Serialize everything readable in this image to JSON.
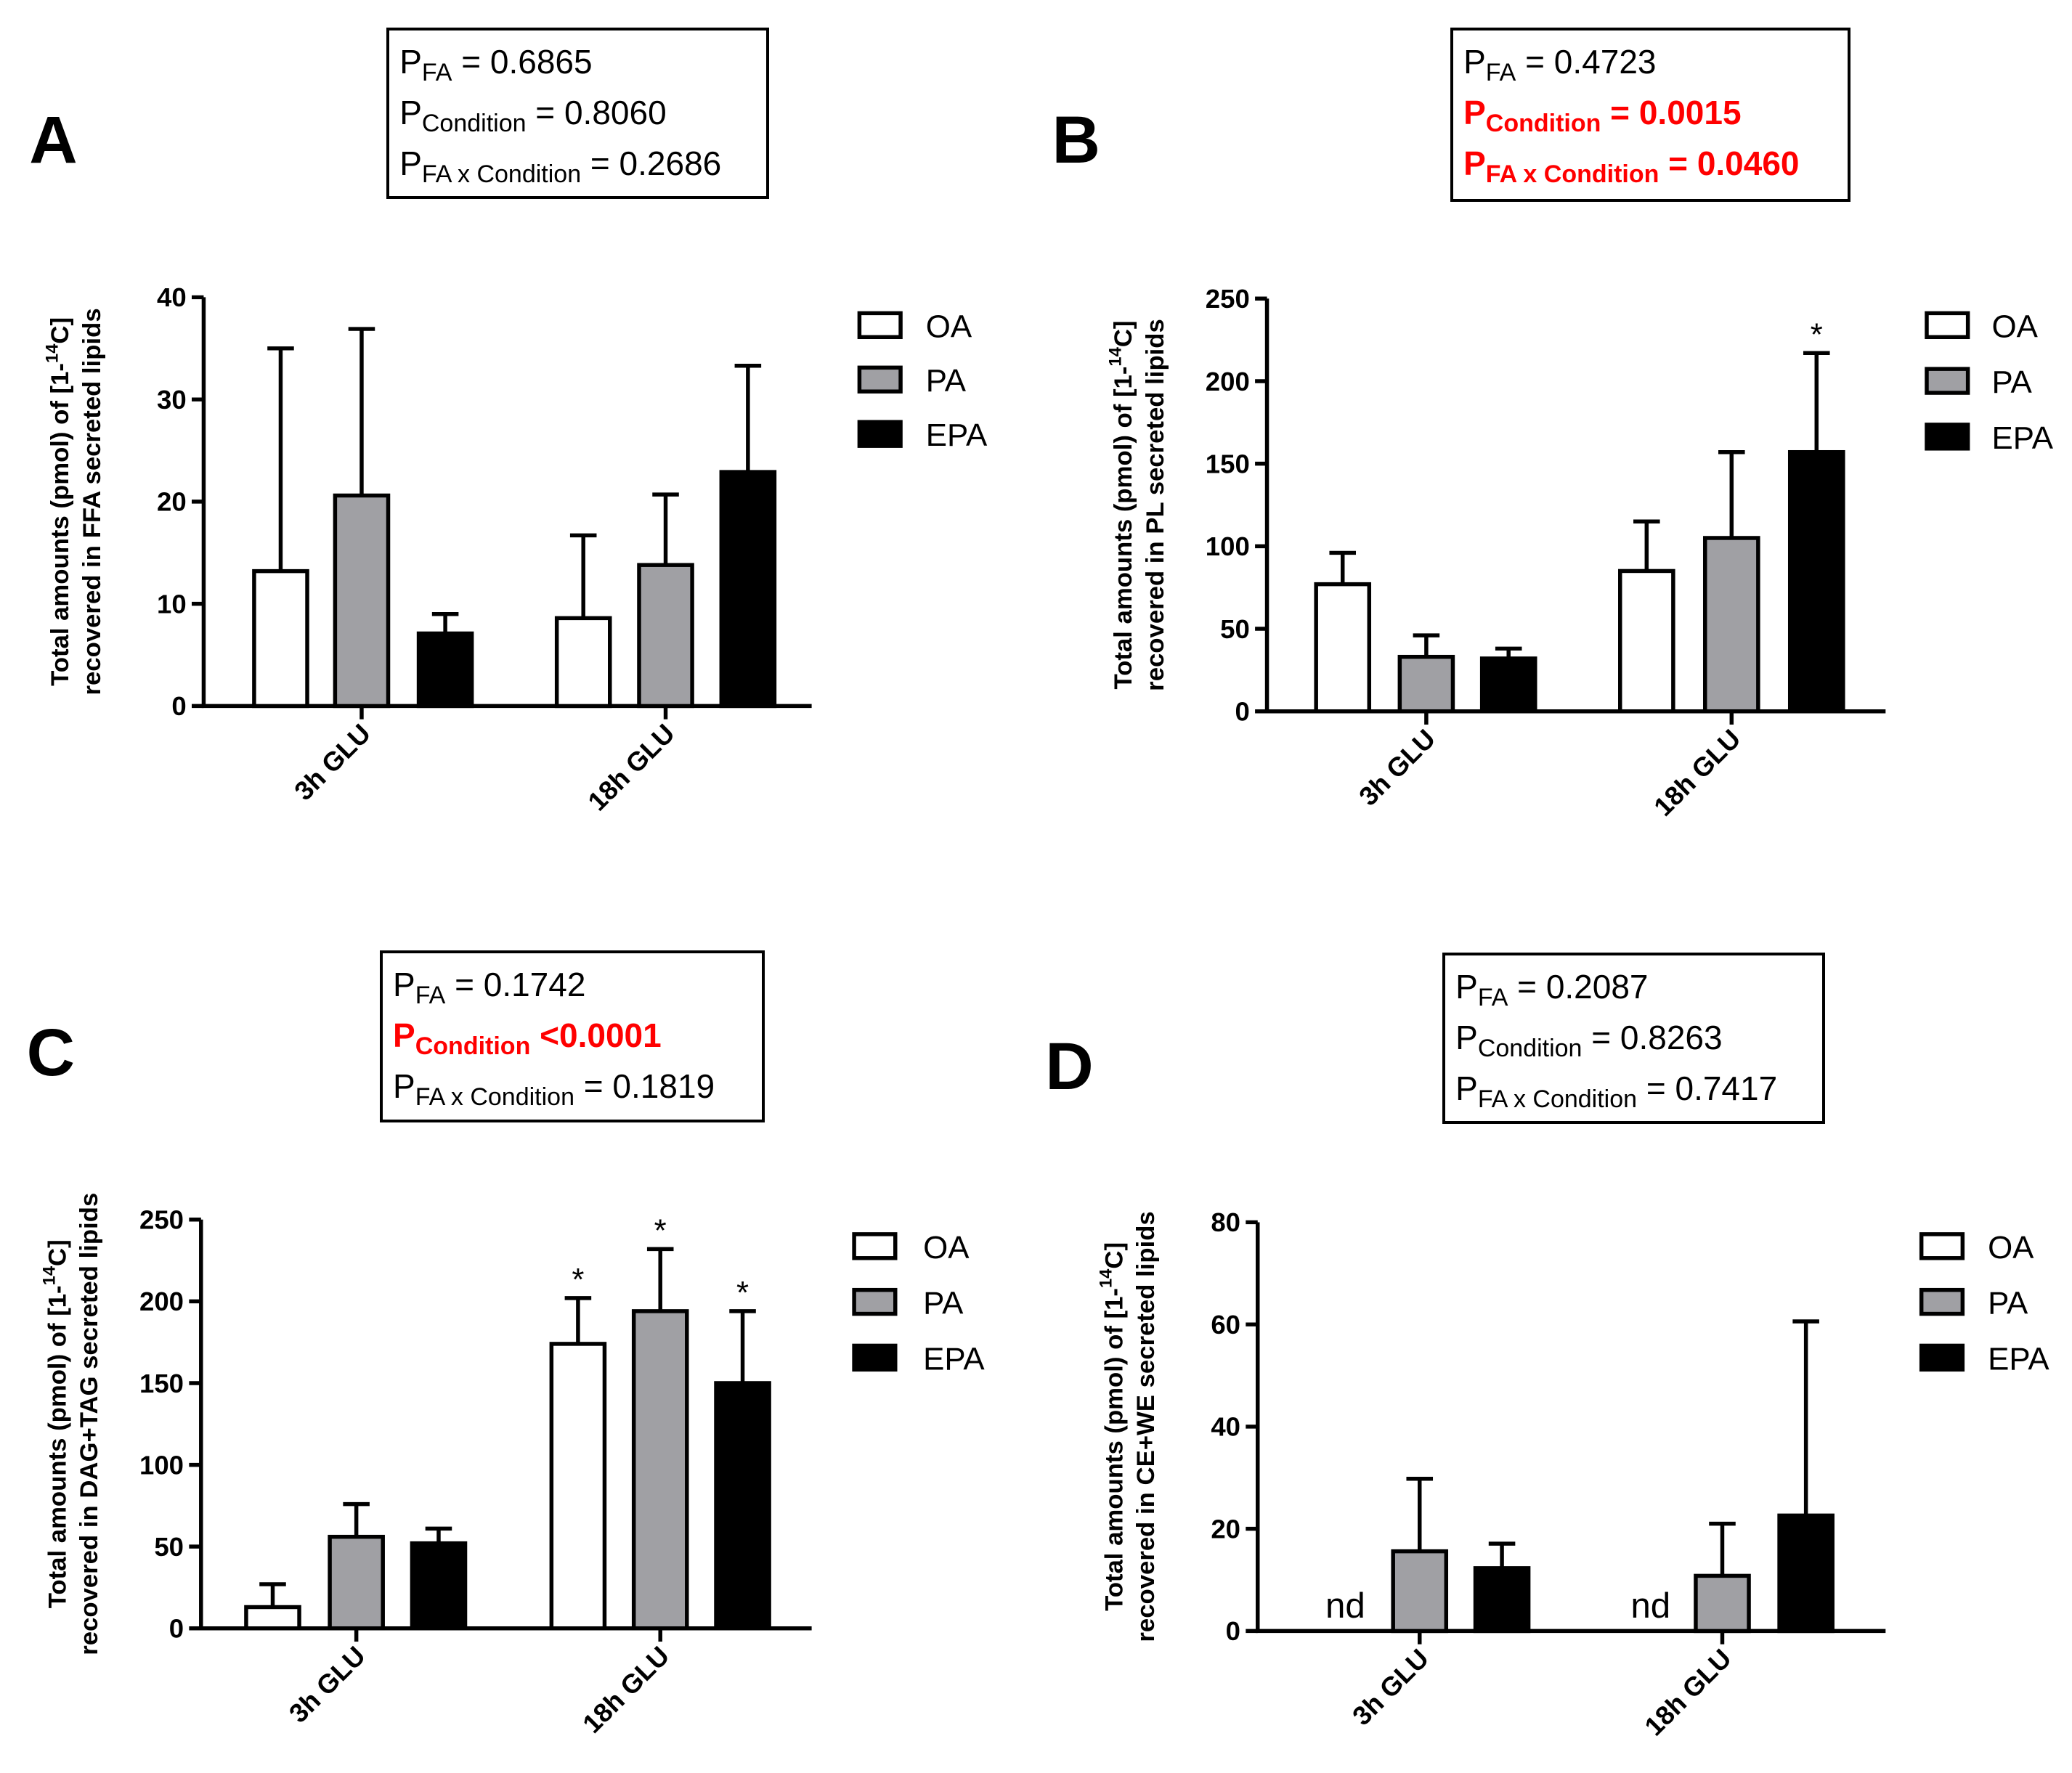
{
  "legend": [
    {
      "name": "OA",
      "color": "#ffffff"
    },
    {
      "name": "PA",
      "color": "#a0a0a4"
    },
    {
      "name": "EPA",
      "color": "#000000"
    }
  ],
  "panels": [
    {
      "letter": "A",
      "stats": [
        {
          "label": "P",
          "sub": "FA",
          "value": " = 0.6865",
          "significant": false
        },
        {
          "label": "P",
          "sub": "Condition",
          "value": " = 0.8060",
          "significant": false
        },
        {
          "label": "P",
          "sub": "FA x Condition",
          "value": " = 0.2686",
          "significant": false
        }
      ]
    },
    {
      "letter": "B",
      "stats": [
        {
          "label": "P",
          "sub": "FA",
          "value": " = 0.4723",
          "significant": false
        },
        {
          "label": "P",
          "sub": "Condition",
          "value": " = 0.0015",
          "significant": true
        },
        {
          "label": "P",
          "sub": "FA x Condition",
          "value": " = 0.0460",
          "significant": true
        }
      ]
    },
    {
      "letter": "C",
      "stats": [
        {
          "label": "P",
          "sub": "FA",
          "value": " = 0.1742",
          "significant": false
        },
        {
          "label": "P",
          "sub": "Condition",
          "value": " <0.0001",
          "significant": true
        },
        {
          "label": "P",
          "sub": "FA x Condition",
          "value": " = 0.1819",
          "significant": false
        }
      ]
    },
    {
      "letter": "D",
      "stats": [
        {
          "label": "P",
          "sub": "FA",
          "value": " = 0.2087",
          "significant": false
        },
        {
          "label": "P",
          "sub": "Condition",
          "value": " = 0.8263",
          "significant": false
        },
        {
          "label": "P",
          "sub": "FA x Condition",
          "value": " = 0.7417",
          "significant": false
        }
      ]
    }
  ],
  "chart_data": [
    {
      "type": "bar",
      "panel": "A",
      "categories": [
        "3h GLU",
        "18h GLU"
      ],
      "ylabel_line1_prefix": "Total amounts (pmol) of [1-",
      "ylabel_sup": "14",
      "ylabel_line1_suffix": "C]",
      "ylabel_line2": "recovered in FFA secreted lipids",
      "ylim": [
        0,
        40
      ],
      "yticks": [
        0,
        10,
        20,
        30,
        40
      ],
      "ytick_labels": [
        "0",
        "10",
        "20",
        "30",
        "40"
      ],
      "series": [
        {
          "name": "OA",
          "values": [
            13.2,
            8.6
          ],
          "errors": [
            21.8,
            8.1
          ],
          "marks": [
            "",
            ""
          ]
        },
        {
          "name": "PA",
          "values": [
            20.6,
            13.8
          ],
          "errors": [
            16.3,
            6.9
          ],
          "marks": [
            "",
            ""
          ]
        },
        {
          "name": "EPA",
          "values": [
            7.1,
            22.9
          ],
          "errors": [
            1.9,
            10.4
          ],
          "marks": [
            "",
            ""
          ]
        }
      ]
    },
    {
      "type": "bar",
      "panel": "B",
      "categories": [
        "3h GLU",
        "18h GLU"
      ],
      "ylabel_line1_prefix": "Total amounts (pmol) of [1-",
      "ylabel_sup": "14",
      "ylabel_line1_suffix": "C]",
      "ylabel_line2": "recovered in PL secreted lipids",
      "ylim": [
        0,
        250
      ],
      "yticks": [
        0,
        50,
        100,
        150,
        200,
        250
      ],
      "ytick_labels": [
        "0",
        "50",
        "100",
        "150",
        "200",
        "250"
      ],
      "series": [
        {
          "name": "OA",
          "values": [
            77,
            85
          ],
          "errors": [
            19,
            30
          ],
          "marks": [
            "",
            ""
          ]
        },
        {
          "name": "PA",
          "values": [
            33,
            105
          ],
          "errors": [
            13,
            52
          ],
          "marks": [
            "",
            ""
          ]
        },
        {
          "name": "EPA",
          "values": [
            32,
            157
          ],
          "errors": [
            6,
            60
          ],
          "marks": [
            "",
            "*"
          ]
        }
      ]
    },
    {
      "type": "bar",
      "panel": "C",
      "categories": [
        "3h GLU",
        "18h GLU"
      ],
      "ylabel_line1_prefix": "Total amounts (pmol) of [1-",
      "ylabel_sup": "14",
      "ylabel_line1_suffix": "C]",
      "ylabel_line2": "recovered in DAG+TAG secreted lipids",
      "ylim": [
        0,
        250
      ],
      "yticks": [
        0,
        50,
        100,
        150,
        200,
        250
      ],
      "ytick_labels": [
        "0",
        "50",
        "100",
        "150",
        "200",
        "250"
      ],
      "series": [
        {
          "name": "OA",
          "values": [
            13,
            174
          ],
          "errors": [
            14,
            28
          ],
          "marks": [
            "",
            "*"
          ]
        },
        {
          "name": "PA",
          "values": [
            56,
            194
          ],
          "errors": [
            20,
            38
          ],
          "marks": [
            "",
            "*"
          ]
        },
        {
          "name": "EPA",
          "values": [
            52,
            150
          ],
          "errors": [
            9,
            44
          ],
          "marks": [
            "",
            "*"
          ]
        }
      ]
    },
    {
      "type": "bar",
      "panel": "D",
      "categories": [
        "3h GLU",
        "18h GLU"
      ],
      "ylabel_line1_prefix": "Total amounts (pmol) of [1-",
      "ylabel_sup": "14",
      "ylabel_line1_suffix": "C]",
      "ylabel_line2": "recovered in CE+WE secreted lipids",
      "ylim": [
        0,
        80
      ],
      "yticks": [
        0,
        20,
        40,
        60,
        80
      ],
      "ytick_labels": [
        "0",
        "20",
        "40",
        "60",
        "80"
      ],
      "series": [
        {
          "name": "OA",
          "values": [
            null,
            null
          ],
          "errors": [
            null,
            null
          ],
          "marks": [
            "nd",
            "nd"
          ]
        },
        {
          "name": "PA",
          "values": [
            15.6,
            10.8
          ],
          "errors": [
            14.2,
            10.2
          ],
          "marks": [
            "",
            ""
          ]
        },
        {
          "name": "EPA",
          "values": [
            12.3,
            22.6
          ],
          "errors": [
            4.8,
            38.0
          ],
          "marks": [
            "",
            ""
          ]
        }
      ]
    }
  ]
}
